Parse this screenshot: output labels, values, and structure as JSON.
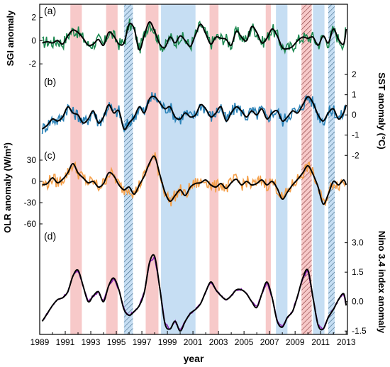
{
  "chart_data": {
    "type": "line",
    "xlabel": "year",
    "x_range": [
      1989,
      2013.1
    ],
    "x_ticks": [
      "1989",
      "1991",
      "1993",
      "1995",
      "1997",
      "1999",
      "2001",
      "2003",
      "2005",
      "2007",
      "2009",
      "2011",
      "2013"
    ],
    "shading": {
      "el_nino": [
        [
          1991.4,
          1992.3
        ],
        [
          1994.2,
          1995.1
        ],
        [
          1997.3,
          1998.3
        ],
        [
          2002.3,
          2003.0
        ],
        [
          2006.7,
          2007.1
        ],
        [
          2009.5,
          2010.3
        ]
      ],
      "la_nina": [
        [
          1995.6,
          1996.3
        ],
        [
          1998.5,
          2001.2
        ],
        [
          2007.5,
          2008.4
        ],
        [
          2010.4,
          2011.3
        ],
        [
          2011.6,
          2012.1
        ]
      ],
      "hatched_red": [
        [
          2009.5,
          2010.3
        ]
      ],
      "hatched_blue": [
        [
          1995.6,
          1996.3
        ],
        [
          2011.6,
          2012.1
        ]
      ],
      "colors": {
        "el_nino": "#f7c9c9",
        "la_nina": "#c6def3",
        "hatch_red": "#7a2b2b",
        "hatch_blue": "#2d5b7a"
      }
    },
    "panels": [
      {
        "label": "(a)",
        "ylabel": "SGI anomaly",
        "axis_side": "left",
        "ylim": [
          -2.6,
          3.0
        ],
        "tick_labels": [
          "2",
          "0",
          "-2"
        ],
        "ticks": [
          2,
          0,
          -2
        ],
        "raw_color": "#1e8a52",
        "smooth_color": "#000000",
        "raw_amp": 0.55,
        "x": [
          1989.2,
          1989.6,
          1990.0,
          1990.4,
          1990.8,
          1991.2,
          1991.6,
          1992.0,
          1992.4,
          1992.8,
          1993.2,
          1993.6,
          1994.0,
          1994.4,
          1994.8,
          1995.2,
          1995.6,
          1996.0,
          1996.4,
          1996.8,
          1997.2,
          1997.6,
          1998.0,
          1998.4,
          1998.8,
          1999.2,
          1999.6,
          2000.0,
          2000.4,
          2000.8,
          2001.2,
          2001.6,
          2002.0,
          2002.4,
          2002.8,
          2003.2,
          2003.6,
          2004.0,
          2004.4,
          2004.8,
          2005.2,
          2005.6,
          2006.0,
          2006.4,
          2006.8,
          2007.2,
          2007.6,
          2008.0,
          2008.4,
          2008.8,
          2009.2,
          2009.6,
          2010.0,
          2010.4,
          2010.8,
          2011.2,
          2011.6,
          2012.0,
          2012.4,
          2012.8,
          2013.0
        ],
        "y": [
          -0.2,
          -0.1,
          -0.2,
          0.0,
          -0.3,
          0.4,
          0.9,
          0.7,
          0.2,
          -0.4,
          -0.3,
          0.1,
          -0.4,
          0.7,
          0.4,
          -0.3,
          -0.2,
          1.4,
          1.0,
          -0.8,
          0.5,
          1.6,
          0.8,
          -0.3,
          -0.6,
          0.3,
          -0.2,
          0.4,
          0.0,
          -0.5,
          0.5,
          1.4,
          0.6,
          -0.3,
          0.3,
          0.2,
          0.1,
          -0.4,
          0.8,
          0.3,
          0.0,
          1.2,
          0.7,
          -0.2,
          0.2,
          1.0,
          0.4,
          -0.6,
          -0.7,
          -0.5,
          0.0,
          0.3,
          0.2,
          0.3,
          -0.4,
          0.4,
          -0.2,
          1.0,
          0.1,
          -0.3,
          1.0
        ]
      },
      {
        "label": "(b)",
        "ylabel": "SST anomaly (°C)",
        "axis_side": "right",
        "ylim": [
          -1.5,
          1.9
        ],
        "tick_labels": [
          "2",
          "1",
          "0",
          "-1",
          "-2"
        ],
        "ticks": [
          2,
          1,
          0,
          -1,
          -2
        ],
        "raw_color": "#2b83b8",
        "smooth_color": "#000000",
        "raw_amp": 0.32,
        "x": [
          1989.2,
          1989.6,
          1990.0,
          1990.4,
          1990.8,
          1991.2,
          1991.6,
          1992.0,
          1992.4,
          1992.8,
          1993.2,
          1993.6,
          1994.0,
          1994.4,
          1994.8,
          1995.2,
          1995.6,
          1996.0,
          1996.4,
          1996.8,
          1997.2,
          1997.6,
          1998.0,
          1998.4,
          1998.8,
          1999.2,
          1999.6,
          2000.0,
          2000.4,
          2000.8,
          2001.2,
          2001.6,
          2002.0,
          2002.4,
          2002.8,
          2003.2,
          2003.6,
          2004.0,
          2004.4,
          2004.8,
          2005.2,
          2005.6,
          2006.0,
          2006.4,
          2006.8,
          2007.2,
          2007.6,
          2008.0,
          2008.4,
          2008.8,
          2009.2,
          2009.6,
          2010.0,
          2010.4,
          2010.8,
          2011.2,
          2011.6,
          2012.0,
          2012.4,
          2012.8,
          2013.0
        ],
        "y": [
          -0.7,
          -0.5,
          -0.2,
          -0.3,
          -0.1,
          0.4,
          0.1,
          0.0,
          -0.4,
          -0.2,
          0.2,
          -0.4,
          -0.1,
          0.5,
          0.1,
          0.2,
          -0.7,
          -0.4,
          -0.1,
          0.4,
          0.1,
          0.8,
          0.9,
          0.6,
          0.3,
          0.4,
          -0.1,
          -0.2,
          0.1,
          -0.1,
          0.0,
          0.5,
          0.3,
          -0.1,
          0.1,
          0.4,
          -0.3,
          0.1,
          0.4,
          0.2,
          -0.1,
          0.2,
          0.0,
          0.3,
          -0.2,
          0.1,
          0.2,
          -0.3,
          -0.1,
          0.2,
          0.1,
          0.5,
          0.9,
          0.6,
          0.0,
          -0.3,
          0.1,
          0.3,
          -0.2,
          0.1,
          0.5
        ]
      },
      {
        "label": "(c)",
        "ylabel": "OLR anomaly (W/m²)",
        "axis_side": "left",
        "ylim": [
          -62,
          44
        ],
        "tick_labels": [
          "30",
          "0",
          "-30",
          "-60"
        ],
        "ticks": [
          30,
          0,
          -30,
          -60
        ],
        "raw_color": "#f5a04a",
        "smooth_color": "#000000",
        "raw_amp": 9,
        "x": [
          1989.2,
          1989.6,
          1990.0,
          1990.4,
          1990.8,
          1991.2,
          1991.6,
          1992.0,
          1992.4,
          1992.8,
          1993.2,
          1993.6,
          1994.0,
          1994.4,
          1994.8,
          1995.2,
          1995.6,
          1996.0,
          1996.4,
          1996.8,
          1997.2,
          1997.6,
          1998.0,
          1998.4,
          1998.8,
          1999.2,
          1999.6,
          2000.0,
          2000.4,
          2000.8,
          2001.2,
          2001.6,
          2002.0,
          2002.4,
          2002.8,
          2003.2,
          2003.6,
          2004.0,
          2004.4,
          2004.8,
          2005.2,
          2005.6,
          2006.0,
          2006.4,
          2006.8,
          2007.2,
          2007.6,
          2008.0,
          2008.4,
          2008.8,
          2009.2,
          2009.6,
          2010.0,
          2010.4,
          2010.8,
          2011.2,
          2011.6,
          2012.0,
          2012.4,
          2012.8,
          2013.0
        ],
        "y": [
          -5,
          -3,
          5,
          -2,
          3,
          12,
          25,
          12,
          5,
          -2,
          0,
          -8,
          -3,
          12,
          8,
          -5,
          -12,
          -8,
          -18,
          -5,
          8,
          26,
          35,
          10,
          -15,
          -28,
          -20,
          -12,
          -20,
          -8,
          -3,
          -2,
          2,
          -5,
          -8,
          -3,
          -10,
          -2,
          3,
          -5,
          0,
          -5,
          -3,
          2,
          -5,
          0,
          -10,
          -25,
          -15,
          -5,
          3,
          12,
          22,
          10,
          -8,
          -32,
          -18,
          0,
          -5,
          2,
          -5
        ]
      },
      {
        "label": "(d)",
        "ylabel": "Nino 3.4 index anomaly",
        "axis_side": "right",
        "ylim": [
          -1.6,
          3.6
        ],
        "tick_labels": [
          "3.0",
          "1.5",
          "0.0",
          "-1.5"
        ],
        "ticks": [
          3.0,
          1.5,
          0.0,
          -1.5
        ],
        "raw_color": "#8b1fb5",
        "smooth_color": "#000000",
        "raw_amp": 0.05,
        "x": [
          1989.2,
          1989.6,
          1990.0,
          1990.4,
          1990.8,
          1991.2,
          1991.6,
          1992.0,
          1992.4,
          1992.8,
          1993.2,
          1993.6,
          1994.0,
          1994.4,
          1994.8,
          1995.2,
          1995.6,
          1996.0,
          1996.4,
          1996.8,
          1997.2,
          1997.6,
          1998.0,
          1998.4,
          1998.8,
          1999.2,
          1999.6,
          2000.0,
          2000.4,
          2000.8,
          2001.2,
          2001.6,
          2002.0,
          2002.4,
          2002.8,
          2003.2,
          2003.6,
          2004.0,
          2004.4,
          2004.8,
          2005.2,
          2005.6,
          2006.0,
          2006.4,
          2006.8,
          2007.2,
          2007.6,
          2008.0,
          2008.4,
          2008.8,
          2009.2,
          2009.6,
          2010.0,
          2010.4,
          2010.8,
          2011.2,
          2011.6,
          2012.0,
          2012.4,
          2012.8,
          2013.0
        ],
        "y": [
          -1.0,
          -0.6,
          -0.2,
          0.1,
          0.2,
          0.5,
          1.3,
          1.6,
          0.8,
          0.0,
          0.3,
          0.5,
          0.0,
          0.8,
          1.2,
          0.6,
          -0.4,
          -0.7,
          -0.5,
          -0.2,
          0.5,
          2.0,
          2.3,
          0.7,
          -1.1,
          -1.4,
          -1.0,
          -1.5,
          -1.0,
          -0.6,
          -0.4,
          -0.1,
          0.5,
          1.0,
          0.6,
          0.3,
          0.1,
          0.3,
          0.6,
          0.6,
          0.4,
          0.0,
          -0.3,
          0.4,
          1.0,
          0.2,
          -1.0,
          -1.3,
          -0.8,
          -0.5,
          0.3,
          1.2,
          1.6,
          0.2,
          -1.2,
          -1.4,
          -0.8,
          -0.4,
          0.1,
          0.4,
          -0.2
        ]
      }
    ]
  }
}
